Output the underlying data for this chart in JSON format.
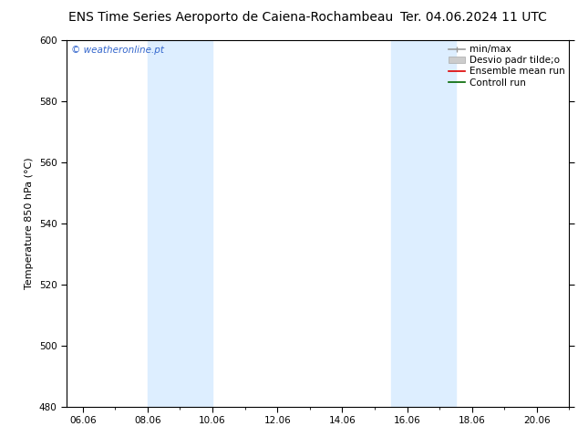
{
  "title_left": "ENS Time Series Aeroporto de Caiena-Rochambeau",
  "title_right": "Ter. 04.06.2024 11 UTC",
  "ylabel": "Temperature 850 hPa (°C)",
  "ylim": [
    480,
    600
  ],
  "yticks": [
    480,
    500,
    520,
    540,
    560,
    580,
    600
  ],
  "xlim_start": 5.5,
  "xlim_end": 21.0,
  "xtick_labels": [
    "06.06",
    "08.06",
    "10.06",
    "12.06",
    "14.06",
    "16.06",
    "18.06",
    "20.06"
  ],
  "xtick_positions": [
    6.0,
    8.0,
    10.0,
    12.0,
    14.0,
    16.0,
    18.0,
    20.0
  ],
  "shaded_bands": [
    {
      "x_start": 8.0,
      "x_end": 10.0
    },
    {
      "x_start": 15.5,
      "x_end": 17.5
    }
  ],
  "band_color": "#ddeeff",
  "background_color": "#ffffff",
  "watermark_text": "© weatheronline.pt",
  "watermark_color": "#3366cc",
  "legend_items": [
    {
      "label": "min/max",
      "color": "#999999",
      "lw": 1.2
    },
    {
      "label": "Desvio padr tilde;o",
      "color": "#cccccc",
      "lw": 6
    },
    {
      "label": "Ensemble mean run",
      "color": "#dd0000",
      "lw": 1.2
    },
    {
      "label": "Controll run",
      "color": "#006600",
      "lw": 1.2
    }
  ],
  "title_fontsize": 10,
  "label_fontsize": 8,
  "tick_fontsize": 7.5,
  "legend_fontsize": 7.5
}
